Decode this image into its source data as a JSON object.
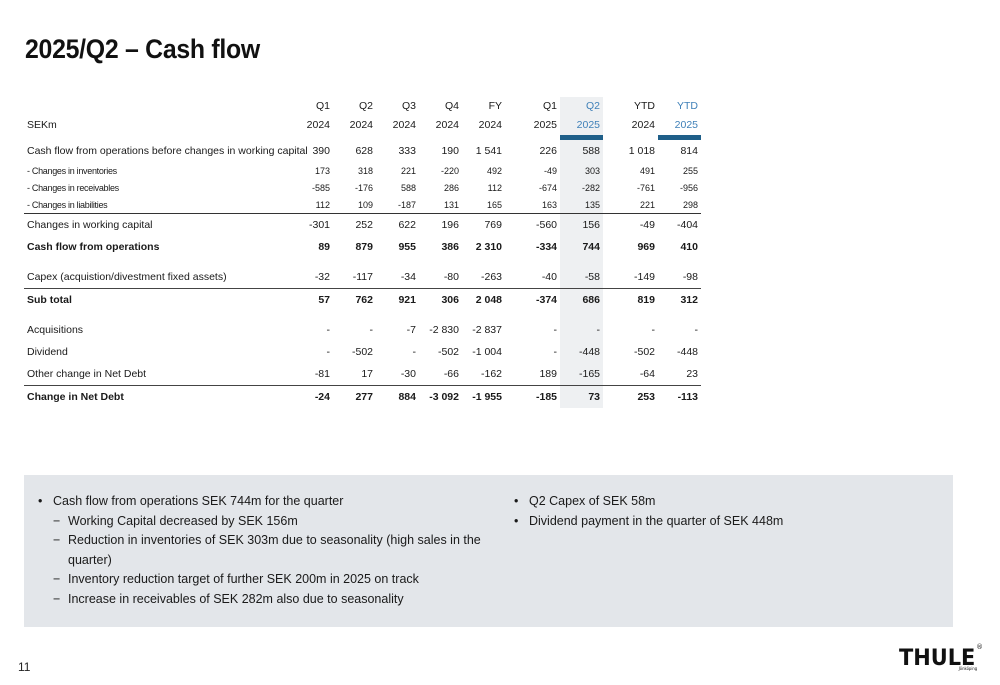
{
  "title": "2025/Q2 – Cash flow",
  "table": {
    "unit_label": "SEKm",
    "periods": [
      {
        "q": "Q1",
        "y": "2024"
      },
      {
        "q": "Q2",
        "y": "2024"
      },
      {
        "q": "Q3",
        "y": "2024"
      },
      {
        "q": "Q4",
        "y": "2024"
      },
      {
        "q": "FY",
        "y": "2024"
      },
      {
        "q": "Q1",
        "y": "2025"
      },
      {
        "q": "Q2",
        "y": "2025"
      },
      {
        "q": "YTD",
        "y": "2024"
      },
      {
        "q": "YTD",
        "y": "2025"
      }
    ],
    "rows": [
      {
        "label": "Cash flow from operations before changes in working capital",
        "values": [
          "390",
          "628",
          "333",
          "190",
          "1 541",
          "226",
          "588",
          "1 018",
          "814"
        ]
      },
      {
        "label": "- Changes in inventories",
        "values": [
          "173",
          "318",
          "221",
          "-220",
          "492",
          "-49",
          "303",
          "491",
          "255"
        ]
      },
      {
        "label": "- Changes in receivables",
        "values": [
          "-585",
          "-176",
          "588",
          "286",
          "112",
          "-674",
          "-282",
          "-761",
          "-956"
        ]
      },
      {
        "label": "- Changes in liabilities",
        "values": [
          "112",
          "109",
          "-187",
          "131",
          "165",
          "163",
          "135",
          "221",
          "298"
        ]
      },
      {
        "label": "Changes in working capital",
        "values": [
          "-301",
          "252",
          "622",
          "196",
          "769",
          "-560",
          "156",
          "-49",
          "-404"
        ]
      },
      {
        "label": "Cash flow from operations",
        "values": [
          "89",
          "879",
          "955",
          "386",
          "2 310",
          "-334",
          "744",
          "969",
          "410"
        ]
      },
      {
        "label": "Capex (acquistion/divestment fixed assets)",
        "values": [
          "-32",
          "-117",
          "-34",
          "-80",
          "-263",
          "-40",
          "-58",
          "-149",
          "-98"
        ]
      },
      {
        "label": "Sub total",
        "values": [
          "57",
          "762",
          "921",
          "306",
          "2 048",
          "-374",
          "686",
          "819",
          "312"
        ]
      },
      {
        "label": "Acquisitions",
        "values": [
          "-",
          "-",
          "-7",
          "-2 830",
          "-2 837",
          "-",
          "-",
          "-",
          "-"
        ]
      },
      {
        "label": "Dividend",
        "values": [
          "-",
          "-502",
          "-",
          "-502",
          "-1 004",
          "-",
          "-448",
          "-502",
          "-448"
        ]
      },
      {
        "label": "Other change in Net Debt",
        "values": [
          "-81",
          "17",
          "-30",
          "-66",
          "-162",
          "189",
          "-165",
          "-64",
          "23"
        ]
      },
      {
        "label": "Change in Net Debt",
        "values": [
          "-24",
          "277",
          "884",
          "-3 092",
          "-1 955",
          "-185",
          "73",
          "253",
          "-113"
        ]
      }
    ]
  },
  "notes": {
    "left": [
      {
        "level": 1,
        "marker": "•",
        "text": "Cash flow from operations SEK 744m for the quarter"
      },
      {
        "level": 2,
        "marker": "−",
        "text": "Working Capital decreased by SEK 156m"
      },
      {
        "level": 2,
        "marker": "−",
        "text": "Reduction in inventories of SEK 303m due to seasonality (high sales in the quarter)"
      },
      {
        "level": 2,
        "marker": "−",
        "text": "Inventory reduction target of further SEK 200m in 2025 on track"
      },
      {
        "level": 2,
        "marker": "−",
        "text": "Increase in receivables of SEK 282m also due to seasonality"
      }
    ],
    "right": [
      {
        "level": 1,
        "marker": "•",
        "text": "Q2 Capex of SEK 58m"
      },
      {
        "level": 1,
        "marker": "•",
        "text": "Dividend payment in the quarter of SEK 448m"
      }
    ]
  },
  "page_number": "11",
  "logo": {
    "text": "THULE",
    "reg": "®",
    "tagline": "Jönköping"
  },
  "colors": {
    "highlight_period": "#3f80b8",
    "marker_bar": "#1f5f89",
    "notes_bg": "#e3e6ea",
    "q2_column_bg": "#eef0f2"
  }
}
